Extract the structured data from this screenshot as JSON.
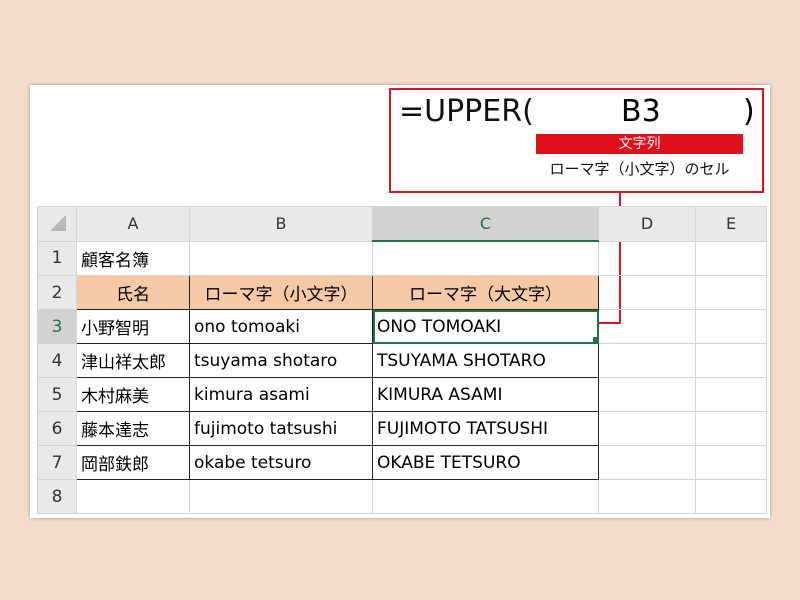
{
  "callout": {
    "formula": "=UPPER(",
    "argument": "B3",
    "close_paren": ")",
    "arg_label": "文字列",
    "arg_desc": "ローマ字（小文字）のセル"
  },
  "columns": [
    "A",
    "B",
    "C",
    "D",
    "E"
  ],
  "rows": [
    {
      "num": "1",
      "a": "顧客名簿",
      "b": "",
      "c": ""
    },
    {
      "num": "2",
      "a": "氏名",
      "b": "ローマ字（小文字）",
      "c": "ローマ字（大文字）"
    },
    {
      "num": "3",
      "a": "小野智明",
      "b": "ono tomoaki",
      "c": "ONO TOMOAKI"
    },
    {
      "num": "4",
      "a": "津山祥太郎",
      "b": "tsuyama shotaro",
      "c": "TSUYAMA SHOTARO"
    },
    {
      "num": "5",
      "a": "木村麻美",
      "b": "kimura asami",
      "c": "KIMURA ASAMI"
    },
    {
      "num": "6",
      "a": "藤本達志",
      "b": "fujimoto tatsushi",
      "c": "FUJIMOTO TATSUSHI"
    },
    {
      "num": "7",
      "a": "岡部鉄郎",
      "b": "okabe tetsuro",
      "c": "OKABE TETSURO"
    },
    {
      "num": "8",
      "a": "",
      "b": "",
      "c": ""
    }
  ],
  "colors": {
    "accent": "#d9161e",
    "header_fill": "#f6c9a6",
    "selection": "#217346"
  }
}
